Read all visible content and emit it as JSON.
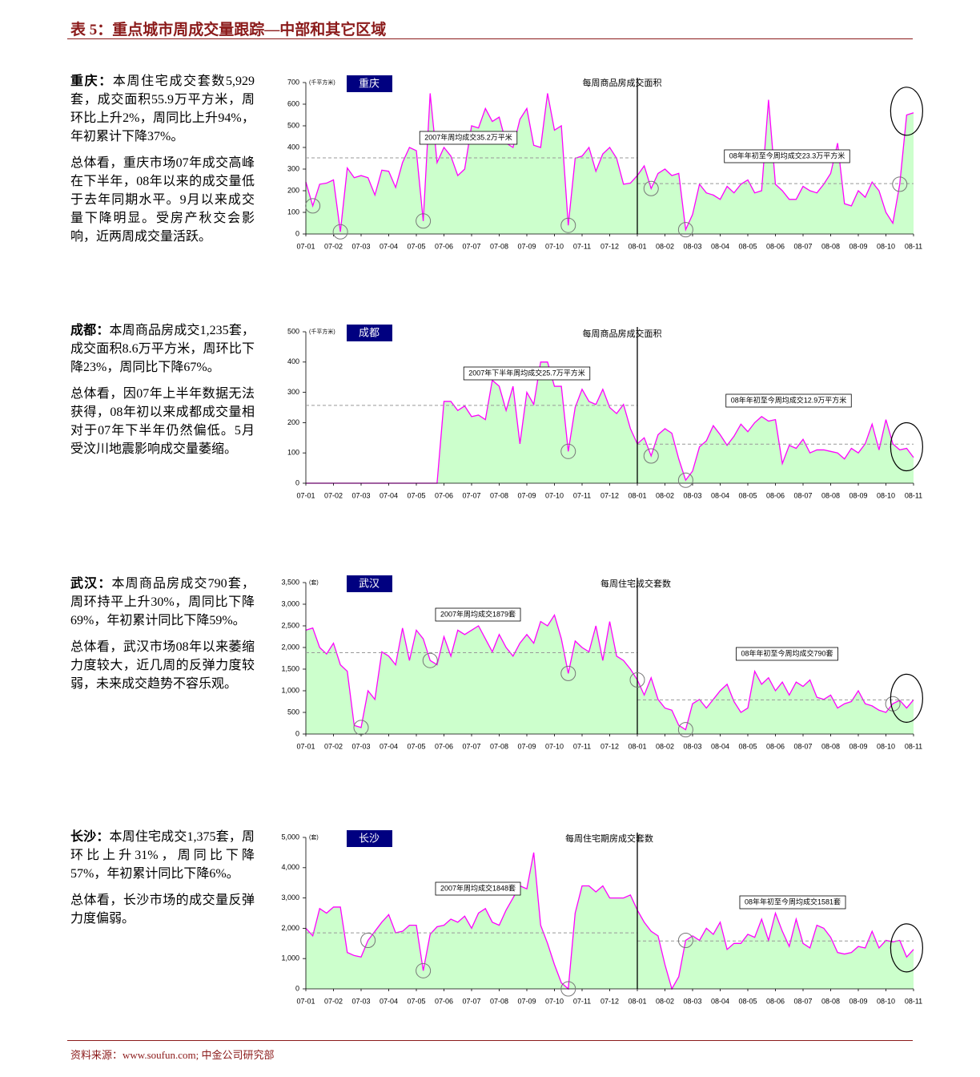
{
  "header": {
    "title": "表 5：重点城市周成交量跟踪—中部和其它区域"
  },
  "sections": [
    {
      "lead": "重庆：",
      "paragraphs": [
        "本周住宅成交套数5,929套，成交面积55.9万平方米，周环比上升2%，周同比上升94%，年初累计下降37%。",
        "总体看，重庆市场07年成交高峰在下半年，08年以来的成交量低于去年同期水平。9月以来成交量下降明显。受房产秋交会影响，近两周成交量活跃。"
      ]
    },
    {
      "lead": "成都：",
      "paragraphs": [
        "本周商品房成交1,235套，成交面积8.6万平方米，周环比下降23%，周同比下降67%。",
        "总体看，因07年上半年数据无法获得，08年初以来成都成交量相对于07年下半年仍然偏低。5月受汶川地震影响成交量萎缩。"
      ]
    },
    {
      "lead": "武汉：",
      "paragraphs": [
        "本周商品房成交790套，周环持平上升30%，周同比下降69%，年初累计同比下降59%。",
        "总体看，武汉市场08年以来萎缩力度较大，近几周的反弹力度较弱，未来成交趋势不容乐观。"
      ]
    },
    {
      "lead": "长沙：",
      "paragraphs": [
        "本周住宅成交1,375套，周环比上升31%，周同比下降57%，年初累计同比下降6%。",
        "总体看，长沙市场的成交量反弹力度偏弱。"
      ]
    }
  ],
  "chart_data": [
    {
      "type": "area",
      "title": "每周商品房成交面积",
      "badge": "重庆",
      "unit": "(千平方米)",
      "color": "#ff00ff",
      "fill": "#ccffcc",
      "categories": [
        "07-01",
        null,
        null,
        null,
        "07-02",
        null,
        null,
        null,
        "07-03",
        null,
        null,
        null,
        "07-04",
        null,
        null,
        null,
        "07-05",
        null,
        null,
        null,
        "07-06",
        null,
        null,
        null,
        "07-07",
        null,
        null,
        null,
        "07-08",
        null,
        null,
        null,
        "07-09",
        null,
        null,
        null,
        "07-10",
        null,
        null,
        null,
        "07-11",
        null,
        null,
        null,
        "07-12",
        null,
        null,
        null,
        "08-01",
        null,
        null,
        null,
        "08-02",
        null,
        null,
        null,
        "08-03",
        null,
        null,
        null,
        "08-04",
        null,
        null,
        null,
        "08-05",
        null,
        null,
        null,
        "08-06",
        null,
        null,
        null,
        "08-07",
        null,
        null,
        null,
        "08-08",
        null,
        null,
        null,
        "08-09",
        null,
        null,
        null,
        "08-10",
        null,
        null,
        null,
        "08-11"
      ],
      "values": [
        240,
        130,
        230,
        235,
        250,
        10,
        305,
        260,
        270,
        260,
        180,
        295,
        290,
        215,
        330,
        400,
        385,
        60,
        650,
        330,
        400,
        360,
        270,
        300,
        500,
        490,
        580,
        520,
        540,
        420,
        400,
        530,
        580,
        410,
        400,
        650,
        480,
        500,
        40,
        350,
        360,
        400,
        290,
        370,
        400,
        350,
        230,
        235,
        270,
        315,
        210,
        280,
        300,
        270,
        280,
        20,
        90,
        230,
        190,
        180,
        160,
        220,
        190,
        230,
        250,
        190,
        200,
        620,
        230,
        200,
        160,
        160,
        220,
        200,
        190,
        230,
        280,
        420,
        140,
        130,
        200,
        170,
        240,
        200,
        100,
        50,
        230,
        550,
        560
      ],
      "ylim": [
        0,
        700
      ],
      "yticks": [
        0,
        100,
        200,
        300,
        400,
        500,
        600,
        700
      ],
      "reference_lines": [
        {
          "text": "2007年周均成交35.2万平米",
          "value": 352
        },
        {
          "text": "08年年初至今周均成交23.3万平方米",
          "value": 233
        }
      ]
    },
    {
      "type": "area",
      "title": "每周商品房成交面积",
      "badge": "成都",
      "unit": "(千平方米)",
      "color": "#ff00ff",
      "fill": "#ccffcc",
      "categories": [
        "07-01",
        null,
        null,
        null,
        "07-02",
        null,
        null,
        null,
        "07-03",
        null,
        null,
        null,
        "07-04",
        null,
        null,
        null,
        "07-05",
        null,
        null,
        null,
        "07-06",
        null,
        null,
        null,
        "07-07",
        null,
        null,
        null,
        "07-08",
        null,
        null,
        null,
        "07-09",
        null,
        null,
        null,
        "07-10",
        null,
        null,
        null,
        "07-11",
        null,
        null,
        null,
        "07-12",
        null,
        null,
        null,
        "08-01",
        null,
        null,
        null,
        "08-02",
        null,
        null,
        null,
        "08-03",
        null,
        null,
        null,
        "08-04",
        null,
        null,
        null,
        "08-05",
        null,
        null,
        null,
        "08-06",
        null,
        null,
        null,
        "08-07",
        null,
        null,
        null,
        "08-08",
        null,
        null,
        null,
        "08-09",
        null,
        null,
        null,
        "08-10",
        null,
        null,
        null,
        "08-11"
      ],
      "values": [
        0,
        0,
        0,
        0,
        0,
        0,
        0,
        0,
        0,
        0,
        0,
        0,
        0,
        0,
        0,
        0,
        0,
        0,
        0,
        0,
        270,
        270,
        240,
        255,
        220,
        225,
        210,
        340,
        320,
        240,
        320,
        130,
        300,
        260,
        400,
        400,
        320,
        320,
        105,
        250,
        310,
        270,
        260,
        310,
        250,
        230,
        260,
        180,
        130,
        150,
        90,
        160,
        180,
        165,
        80,
        10,
        40,
        120,
        140,
        190,
        160,
        125,
        155,
        195,
        170,
        200,
        220,
        205,
        210,
        65,
        125,
        115,
        145,
        100,
        110,
        110,
        105,
        100,
        80,
        115,
        100,
        130,
        195,
        110,
        210,
        130,
        110,
        115,
        85
      ],
      "ylim": [
        0,
        500
      ],
      "yticks": [
        0,
        100,
        200,
        300,
        400,
        500
      ],
      "reference_lines": [
        {
          "text": "2007年下半年周均成交25.7万平方米",
          "value": 257
        },
        {
          "text": "08年年初至今周均成交12.9万平方米",
          "value": 129
        }
      ]
    },
    {
      "type": "area",
      "title": "每周住宅成交套数",
      "badge": "武汉",
      "unit": "(套)",
      "color": "#ff00ff",
      "fill": "#ccffcc",
      "categories": [
        "07-01",
        null,
        null,
        null,
        "07-02",
        null,
        null,
        null,
        "07-03",
        null,
        null,
        null,
        "07-04",
        null,
        null,
        null,
        "07-05",
        null,
        null,
        null,
        "07-06",
        null,
        null,
        null,
        "07-07",
        null,
        null,
        null,
        "07-08",
        null,
        null,
        null,
        "07-09",
        null,
        null,
        null,
        "07-10",
        null,
        null,
        null,
        "07-11",
        null,
        null,
        null,
        "07-12",
        null,
        null,
        null,
        "08-01",
        null,
        null,
        null,
        "08-02",
        null,
        null,
        null,
        "08-03",
        null,
        null,
        null,
        "08-04",
        null,
        null,
        null,
        "08-05",
        null,
        null,
        null,
        "08-06",
        null,
        null,
        null,
        "08-07",
        null,
        null,
        null,
        "08-08",
        null,
        null,
        null,
        "08-09",
        null,
        null,
        null,
        "08-10",
        null,
        null,
        null,
        "08-11"
      ],
      "values": [
        2400,
        2450,
        2000,
        1850,
        2100,
        1600,
        1450,
        200,
        150,
        1000,
        800,
        1900,
        1800,
        1600,
        2450,
        1700,
        2400,
        2200,
        1700,
        1600,
        2250,
        1800,
        2400,
        2300,
        2400,
        2500,
        2200,
        1900,
        2300,
        2000,
        1800,
        2100,
        2300,
        2100,
        2600,
        2500,
        2750,
        2200,
        1400,
        2150,
        2000,
        1900,
        2500,
        1700,
        2600,
        1800,
        1700,
        1500,
        1250,
        900,
        1300,
        800,
        600,
        550,
        200,
        100,
        700,
        800,
        600,
        800,
        1000,
        1150,
        750,
        500,
        600,
        1450,
        1150,
        1300,
        1000,
        1200,
        900,
        1200,
        1100,
        1250,
        850,
        800,
        900,
        600,
        700,
        750,
        1000,
        700,
        650,
        550,
        500,
        700,
        780,
        600,
        790
      ],
      "ylim": [
        0,
        3500
      ],
      "yticks": [
        0,
        500,
        {
          "value": 1000,
          "label": "1,000"
        },
        {
          "value": 1500,
          "label": "1,500"
        },
        {
          "value": 2000,
          "label": "2,000"
        },
        {
          "value": 2500,
          "label": "2,500"
        },
        {
          "value": 3000,
          "label": "3,000"
        },
        {
          "value": 3500,
          "label": "3,500"
        }
      ],
      "reference_lines": [
        {
          "text": "2007年周均成交1879套",
          "value": 1879
        },
        {
          "text": "08年年初至今周均成交790套",
          "value": 790
        }
      ]
    },
    {
      "type": "area",
      "title": "每周住宅期房成交套数",
      "badge": "长沙",
      "unit": "(套)",
      "color": "#ff00ff",
      "fill": "#ccffcc",
      "categories": [
        "07-01",
        null,
        null,
        null,
        "07-02",
        null,
        null,
        null,
        "07-03",
        null,
        null,
        null,
        "07-04",
        null,
        null,
        null,
        "07-05",
        null,
        null,
        null,
        "07-06",
        null,
        null,
        null,
        "07-07",
        null,
        null,
        null,
        "07-08",
        null,
        null,
        null,
        "07-09",
        null,
        null,
        null,
        "07-10",
        null,
        null,
        null,
        "07-11",
        null,
        null,
        null,
        "07-12",
        null,
        null,
        null,
        "08-01",
        null,
        null,
        null,
        "08-02",
        null,
        null,
        null,
        "08-03",
        null,
        null,
        null,
        "08-04",
        null,
        null,
        null,
        "08-05",
        null,
        null,
        null,
        "08-06",
        null,
        null,
        null,
        "08-07",
        null,
        null,
        null,
        "08-08",
        null,
        null,
        null,
        "08-09",
        null,
        null,
        null,
        "08-10",
        null,
        null,
        null,
        "08-11"
      ],
      "values": [
        2000,
        1750,
        2650,
        2500,
        2700,
        2700,
        1200,
        1100,
        1050,
        1600,
        1900,
        2200,
        2450,
        1850,
        1900,
        2100,
        2100,
        600,
        1800,
        2050,
        2100,
        2300,
        2200,
        2400,
        2000,
        2500,
        2650,
        2200,
        2100,
        2600,
        3000,
        3400,
        3300,
        4500,
        2100,
        1500,
        800,
        200,
        0,
        2500,
        3400,
        3400,
        3200,
        3400,
        3000,
        3000,
        3000,
        3100,
        2600,
        2200,
        1900,
        1750,
        800,
        0,
        400,
        1600,
        1750,
        1600,
        2000,
        1800,
        2200,
        1300,
        1500,
        1500,
        1800,
        1700,
        2300,
        1600,
        2500,
        1900,
        1400,
        2300,
        1500,
        1350,
        2100,
        2000,
        1700,
        1200,
        1150,
        1200,
        1400,
        1350,
        1900,
        1350,
        1600,
        1550,
        1600,
        1050,
        1300
      ],
      "ylim": [
        0,
        5000
      ],
      "yticks": [
        0,
        {
          "value": 1000,
          "label": "1,000"
        },
        {
          "value": 2000,
          "label": "2,000"
        },
        {
          "value": 3000,
          "label": "3,000"
        },
        {
          "value": 4000,
          "label": "4,000"
        },
        {
          "value": 5000,
          "label": "5,000"
        }
      ],
      "reference_lines": [
        {
          "text": "2007年周均成交1848套",
          "value": 1848
        },
        {
          "text": "08年年初至今周均成交1581套",
          "value": 1581
        }
      ]
    }
  ],
  "footer": {
    "source": "资料来源：www.soufun.com; 中金公司研究部"
  }
}
